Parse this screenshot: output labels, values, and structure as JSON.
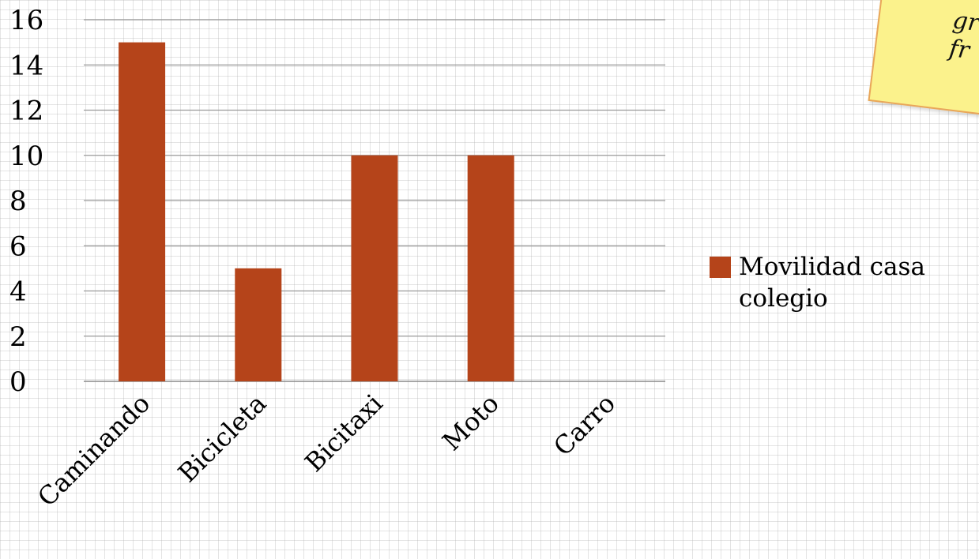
{
  "chart_data": {
    "type": "bar",
    "categories": [
      "Caminando",
      "Bicicleta",
      "Bicitaxi",
      "Moto",
      "Carro"
    ],
    "series": [
      {
        "name": "Movilidad casa colegio",
        "values": [
          15,
          5,
          10,
          10,
          0
        ],
        "color": "#b5441a"
      }
    ],
    "title": "",
    "xlabel": "",
    "ylabel": "",
    "ylim": [
      0,
      16
    ],
    "yticks": [
      0,
      2,
      4,
      6,
      8,
      10,
      12,
      14,
      16
    ],
    "grid": true,
    "legend_position": "right"
  },
  "sticky_note": {
    "text": "gr\nfr",
    "color": "#fbf28c",
    "border_color": "#e9a65a"
  }
}
